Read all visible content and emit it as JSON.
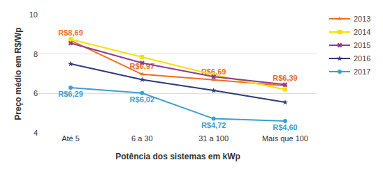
{
  "chart_data": {
    "type": "line",
    "x_label": "Potência dos sistemas em kWp",
    "y_label": "Preço médio em R$/Wp",
    "categories": [
      "Até 5",
      "6 a 30",
      "31 a 100",
      "Mais que 100"
    ],
    "series": [
      {
        "name": "2013",
        "color": "#f26b21",
        "marker": "triangle",
        "values": [
          8.69,
          6.97,
          6.69,
          6.39
        ],
        "data_labels": true,
        "value_labels": [
          "R$8,69",
          "R$6,97",
          "R$6,69",
          "R$6,39"
        ]
      },
      {
        "name": "2014",
        "color": "#f2e200",
        "marker": "square",
        "values": [
          8.75,
          7.85,
          6.95,
          6.2
        ]
      },
      {
        "name": "2015",
        "color": "#8e3b8e",
        "marker": "x",
        "values": [
          8.55,
          7.55,
          6.85,
          6.45
        ]
      },
      {
        "name": "2016",
        "color": "#2e3a80",
        "marker": "star",
        "values": [
          7.5,
          6.7,
          6.15,
          5.55
        ]
      },
      {
        "name": "2017",
        "color": "#3aa0d0",
        "marker": "circle",
        "values": [
          6.29,
          6.02,
          4.72,
          4.6
        ],
        "data_labels": true,
        "value_labels": [
          "R$6,29",
          "R$6,02",
          "R$4,72",
          "R$4,60"
        ]
      }
    ],
    "ylim": [
      4,
      10
    ],
    "yticks": [
      4,
      6,
      8,
      10
    ],
    "grid": true,
    "legend": "right"
  }
}
